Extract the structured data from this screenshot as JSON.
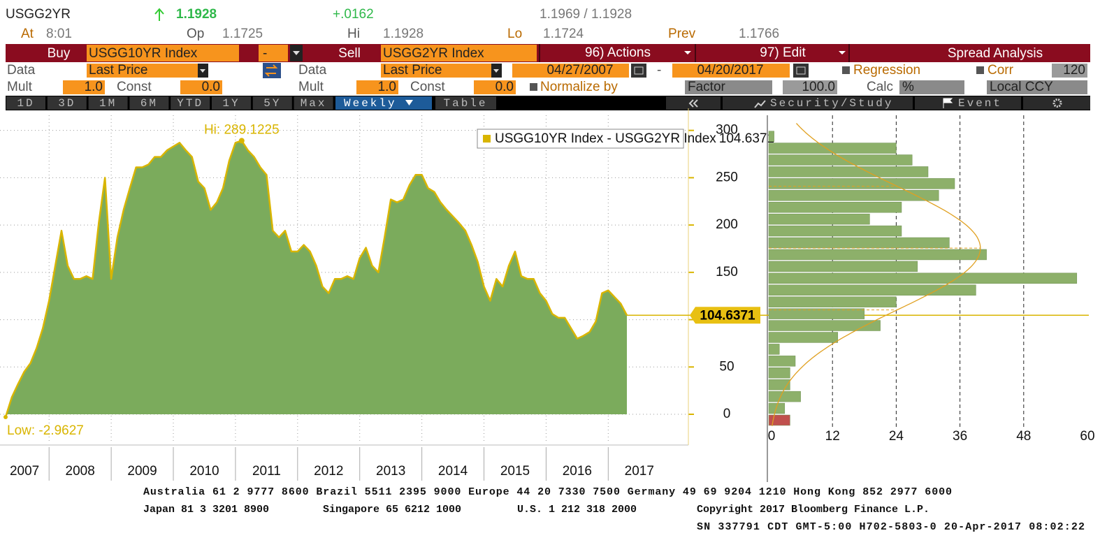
{
  "header": {
    "ticker": "USGG2YR",
    "last": "1.1928",
    "change": "+.0162",
    "bid_ask": "1.1969 / 1.1928",
    "time_label": "At",
    "time": "8:01",
    "open_label": "Op",
    "open": "1.1725",
    "high_label": "Hi",
    "high": "1.1928",
    "low_label": "Lo",
    "low": "1.1724",
    "prev_label": "Prev",
    "prev": "1.1766"
  },
  "toolbar": {
    "buy": "Buy",
    "security1": "USGG10YR Index",
    "operator": "-",
    "sell": "Sell",
    "security2": "USGG2YR Index",
    "actions": "96) Actions",
    "edit": "97) Edit",
    "title": "Spread Analysis"
  },
  "settings": {
    "left": {
      "data_label": "Data",
      "data": "Last Price",
      "mult_label": "Mult",
      "mult": "1.0",
      "const_label": "Const",
      "const": "0.0"
    },
    "right": {
      "data_label": "Data",
      "data": "Last Price",
      "mult_label": "Mult",
      "mult": "1.0",
      "const_label": "Const",
      "const": "0.0"
    },
    "start_date": "04/27/2007",
    "date_sep": "-",
    "end_date": "04/20/2017",
    "regression": "Regression",
    "corr": "Corr",
    "corr_window": "120",
    "normalize": "Normalize by",
    "factor": "Factor",
    "factor_value": "100.0",
    "calc": "Calc",
    "calc_value": "%",
    "currency": "Local CCY"
  },
  "tabs": {
    "periods": [
      "1D",
      "3D",
      "1M",
      "6M",
      "YTD",
      "1Y",
      "5Y",
      "Max"
    ],
    "frequency": "Weekly",
    "table": "Table",
    "security_study": "Security/Study",
    "event": "Event"
  },
  "chart_data": [
    {
      "type": "area",
      "series": [
        {
          "name": "USGG10YR Index - USGG2YR Index",
          "color": "#7bab5c",
          "line_color": "#d9b500"
        }
      ],
      "x": [
        2007.3,
        2007.4,
        2007.5,
        2007.6,
        2007.7,
        2007.8,
        2007.9,
        2008.0,
        2008.1,
        2008.2,
        2008.3,
        2008.4,
        2008.5,
        2008.6,
        2008.7,
        2008.8,
        2008.9,
        2009.0,
        2009.1,
        2009.2,
        2009.3,
        2009.4,
        2009.5,
        2009.6,
        2009.7,
        2009.8,
        2009.9,
        2010.0,
        2010.1,
        2010.2,
        2010.3,
        2010.4,
        2010.5,
        2010.6,
        2010.7,
        2010.8,
        2010.9,
        2011.0,
        2011.1,
        2011.2,
        2011.3,
        2011.4,
        2011.5,
        2011.6,
        2011.7,
        2011.8,
        2011.9,
        2012.0,
        2012.1,
        2012.2,
        2012.3,
        2012.4,
        2012.5,
        2012.6,
        2012.7,
        2012.8,
        2012.9,
        2013.0,
        2013.1,
        2013.2,
        2013.3,
        2013.4,
        2013.5,
        2013.6,
        2013.7,
        2013.8,
        2013.9,
        2014.0,
        2014.1,
        2014.2,
        2014.3,
        2014.4,
        2014.5,
        2014.6,
        2014.7,
        2014.8,
        2014.9,
        2015.0,
        2015.1,
        2015.2,
        2015.3,
        2015.4,
        2015.5,
        2015.6,
        2015.7,
        2015.8,
        2015.9,
        2016.0,
        2016.1,
        2016.2,
        2016.3,
        2016.4,
        2016.5,
        2016.6,
        2016.7,
        2016.8,
        2016.9,
        2017.0,
        2017.1,
        2017.2,
        2017.3
      ],
      "values": [
        -2.9627,
        18,
        32,
        45,
        54,
        70,
        91,
        120,
        157,
        194,
        157,
        143,
        143,
        146,
        143,
        202,
        250,
        143,
        187,
        216,
        239,
        261,
        261,
        264,
        272,
        272,
        279,
        283,
        287,
        279,
        272,
        246,
        239,
        216,
        224,
        239,
        268,
        287,
        289.1225,
        279,
        272,
        261,
        253,
        194,
        187,
        194,
        172,
        172,
        179,
        172,
        157,
        135,
        128,
        143,
        143,
        146,
        143,
        165,
        176,
        157,
        150,
        187,
        227,
        224,
        227,
        242,
        253,
        253,
        239,
        235,
        224,
        216,
        209,
        202,
        194,
        179,
        161,
        135,
        120,
        143,
        135,
        157,
        172,
        146,
        143,
        143,
        128,
        120,
        106,
        102,
        102,
        91,
        80,
        83,
        87,
        98,
        128,
        131,
        124,
        117,
        104.6371
      ],
      "xlim": [
        2007.3,
        2018.29
      ],
      "ylim": [
        -31,
        316
      ],
      "xticks": [
        2007,
        2008,
        2009,
        2010,
        2011,
        2012,
        2013,
        2014,
        2015,
        2016,
        2017
      ],
      "yticks": [
        0,
        50,
        100,
        150,
        200,
        250,
        300
      ],
      "high_label": "Hi: 289.1225",
      "low_label": "Low: -2.9627",
      "grid": true
    },
    {
      "type": "histogram",
      "orientation": "horizontal",
      "bins": [
        -12.5,
        0,
        12.5,
        25,
        37.5,
        50,
        62.5,
        75,
        87.5,
        100,
        112.5,
        125,
        137.5,
        150,
        162.5,
        175,
        187.5,
        200,
        212.5,
        225,
        237.5,
        250,
        262.5,
        275,
        287.5,
        300
      ],
      "counts": [
        4,
        3,
        6,
        4,
        4,
        5,
        2,
        13,
        21,
        18,
        24,
        39,
        58,
        28,
        41,
        34,
        25,
        19,
        25,
        32,
        35,
        30,
        27,
        24,
        1
      ],
      "xlim": [
        0,
        60
      ],
      "xticks": [
        0,
        12,
        24,
        36,
        48,
        60
      ],
      "ylim": [
        -31,
        316
      ],
      "color": "#8db06a",
      "negative_color": "#c0504d",
      "curve_color": "#e0a020"
    }
  ],
  "footer": {
    "line1": "Australia 61 2 9777 8600 Brazil 5511 2395 9000 Europe 44 20 7330 7500 Germany 49 69 9204 1210 Hong Kong 852 2977 6000",
    "japan": "Japan 81 3 3201 8900",
    "singapore": "Singapore 65 6212 1000",
    "us": "U.S. 1 212 318 2000",
    "copyright": "Copyright 2017 Bloomberg Finance L.P.",
    "line3": "SN 337791 CDT  GMT-5:00 H702-5803-0 20-Apr-2017 08:02:22"
  }
}
